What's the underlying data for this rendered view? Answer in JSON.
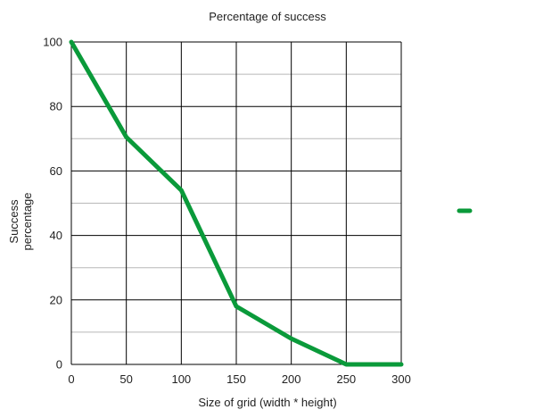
{
  "chart_data": {
    "type": "line",
    "title": "Percentage of success",
    "xlabel": "Size of grid (width * height)",
    "ylabel_lines": [
      "Success",
      "percentage"
    ],
    "x": [
      0,
      50,
      100,
      150,
      200,
      250,
      300
    ],
    "series": [
      {
        "values": [
          100,
          70.5,
          54,
          18,
          8,
          0,
          0
        ],
        "color": "#0a9a3a"
      }
    ],
    "xlim": [
      0,
      300
    ],
    "ylim": [
      0,
      100
    ],
    "xticks": [
      "0",
      "50",
      "100",
      "150",
      "200",
      "250",
      "300"
    ],
    "yticks": [
      "0",
      "20",
      "40",
      "60",
      "80",
      "100"
    ],
    "grid": true,
    "legend_position": "right"
  }
}
